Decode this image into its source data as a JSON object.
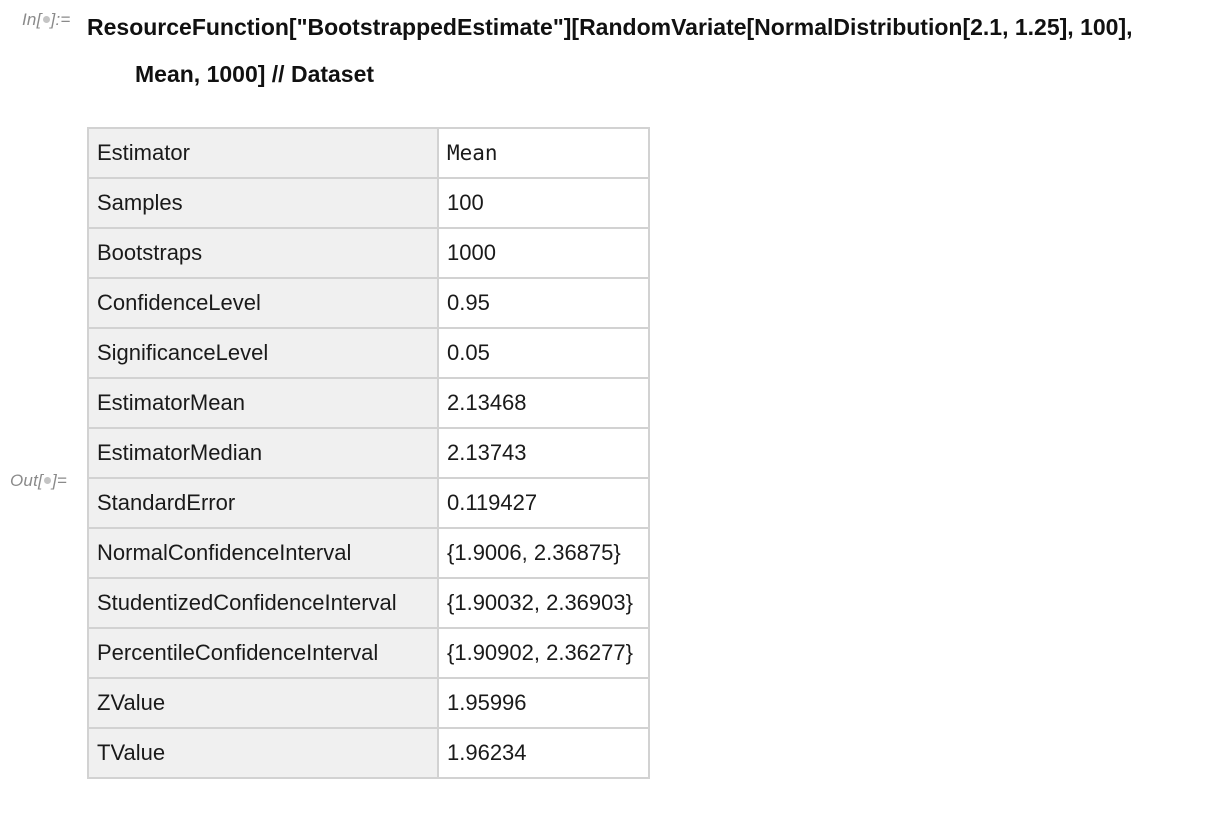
{
  "notebook": {
    "input_cell": {
      "label": "In[",
      "label_suffix": "]:=",
      "code_line1": "ResourceFunction[\"BootstrappedEstimate\"][RandomVariate[NormalDistribution[2.1, 1.25], 100],",
      "code_line2": "Mean, 1000] // Dataset"
    },
    "output_cell": {
      "label": "Out[",
      "label_suffix": "]=",
      "rows": [
        {
          "key": "Estimator",
          "value": "Mean"
        },
        {
          "key": "Samples",
          "value": "100"
        },
        {
          "key": "Bootstraps",
          "value": "1000"
        },
        {
          "key": "ConfidenceLevel",
          "value": "0.95"
        },
        {
          "key": "SignificanceLevel",
          "value": "0.05"
        },
        {
          "key": "EstimatorMean",
          "value": "2.13468"
        },
        {
          "key": "EstimatorMedian",
          "value": "2.13743"
        },
        {
          "key": "StandardError",
          "value": "0.119427"
        },
        {
          "key": "NormalConfidenceInterval",
          "value": "{1.9006, 2.36875}"
        },
        {
          "key": "StudentizedConfidenceInterval",
          "value": "{1.90032, 2.36903}"
        },
        {
          "key": "PercentileConfidenceInterval",
          "value": "{1.90902, 2.36277}"
        },
        {
          "key": "ZValue",
          "value": "1.95996"
        },
        {
          "key": "TValue",
          "value": "1.96234"
        }
      ]
    }
  }
}
